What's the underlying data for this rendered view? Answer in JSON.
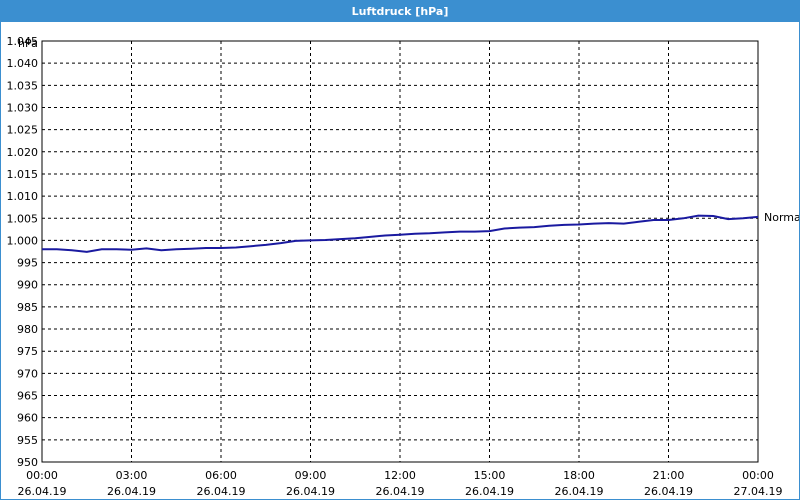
{
  "window": {
    "title": "Luftdruck [hPa]"
  },
  "chart_data": {
    "type": "line",
    "title": "Luftdruck [hPa]",
    "ylabel": "hPa",
    "xlabel": "",
    "ylim": [
      950,
      1045
    ],
    "grid": true,
    "yticks": [
      "950",
      "955",
      "960",
      "965",
      "970",
      "975",
      "980",
      "985",
      "990",
      "995",
      "1.000",
      "1.005",
      "1.010",
      "1.015",
      "1.020",
      "1.025",
      "1.030",
      "1.035",
      "1.040",
      "1.045"
    ],
    "xticks": [
      {
        "time": "00:00",
        "date": "26.04.19"
      },
      {
        "time": "03:00",
        "date": "26.04.19"
      },
      {
        "time": "06:00",
        "date": "26.04.19"
      },
      {
        "time": "09:00",
        "date": "26.04.19"
      },
      {
        "time": "12:00",
        "date": "26.04.19"
      },
      {
        "time": "15:00",
        "date": "26.04.19"
      },
      {
        "time": "18:00",
        "date": "26.04.19"
      },
      {
        "time": "21:00",
        "date": "26.04.19"
      },
      {
        "time": "00:00",
        "date": "27.04.19"
      }
    ],
    "series": [
      {
        "name": "Normal",
        "color": "#1a1aa0",
        "x": [
          "00:00",
          "00:30",
          "01:00",
          "01:30",
          "02:00",
          "02:30",
          "03:00",
          "03:30",
          "04:00",
          "04:30",
          "05:00",
          "05:30",
          "06:00",
          "06:30",
          "07:00",
          "07:30",
          "08:00",
          "08:30",
          "09:00",
          "09:30",
          "10:00",
          "10:30",
          "11:00",
          "11:30",
          "12:00",
          "12:30",
          "13:00",
          "13:30",
          "14:00",
          "14:30",
          "15:00",
          "15:30",
          "16:00",
          "16:30",
          "17:00",
          "17:30",
          "18:00",
          "18:30",
          "19:00",
          "19:30",
          "20:00",
          "20:30",
          "21:00",
          "21:30",
          "22:00",
          "22:30",
          "23:00",
          "23:30",
          "00:00"
        ],
        "values": [
          998.0,
          998.0,
          997.8,
          997.4,
          998.0,
          998.0,
          997.9,
          998.2,
          997.8,
          998.0,
          998.1,
          998.3,
          998.3,
          998.4,
          998.7,
          999.0,
          999.4,
          999.9,
          1000.0,
          1000.1,
          1000.3,
          1000.5,
          1000.8,
          1001.1,
          1001.3,
          1001.5,
          1001.6,
          1001.8,
          1002.0,
          1002.0,
          1002.1,
          1002.7,
          1002.9,
          1003.0,
          1003.3,
          1003.5,
          1003.6,
          1003.8,
          1003.9,
          1003.8,
          1004.2,
          1004.6,
          1004.6,
          1005.0,
          1005.6,
          1005.5,
          1004.8,
          1005.0,
          1005.3
        ]
      }
    ]
  }
}
